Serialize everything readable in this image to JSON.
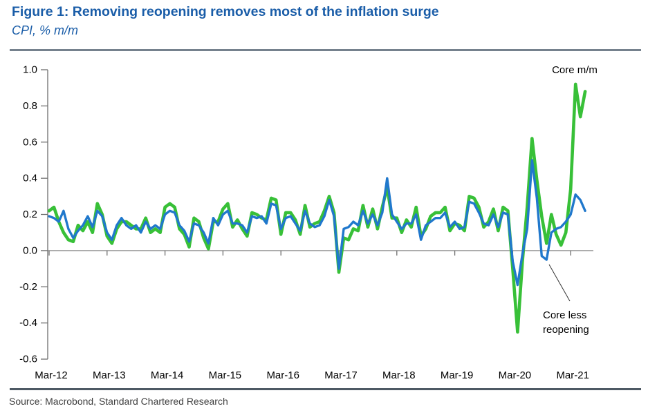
{
  "header": {
    "title": "Figure 1: Removing reopening removes most of the inflation surge",
    "subtitle": "CPI, % m/m"
  },
  "footer": {
    "source": "Source: Macrobond, Standard Chartered Research"
  },
  "chart_data": {
    "type": "line",
    "title": "Figure 1: Removing reopening removes most of the inflation surge",
    "ylabel": "CPI, % m/m",
    "x_start": "Mar-12",
    "x_end": "Jun-21",
    "x_frequency": "monthly",
    "n_points": 112,
    "x_tick_labels": [
      "Mar-12",
      "Mar-13",
      "Mar-14",
      "Mar-15",
      "Mar-16",
      "Mar-17",
      "Mar-18",
      "Mar-19",
      "Mar-20",
      "Mar-21"
    ],
    "ylim": [
      -0.6,
      1.0
    ],
    "y_tick_labels": [
      "1.0",
      "0.8",
      "0.6",
      "0.4",
      "0.2",
      "0.0",
      "-0.2",
      "-0.4",
      "-0.6"
    ],
    "grid": "zero-line-only",
    "legend_position": "inline-annotations",
    "annotation_colors": {
      "pointer_line": "#333333",
      "axis": "#6e6e6e",
      "zero_line": "#8a8a8a"
    },
    "series": [
      {
        "name": "Core m/m",
        "color": "#38c038",
        "line_width": 4.6,
        "values": [
          0.22,
          0.24,
          0.16,
          0.1,
          0.06,
          0.05,
          0.14,
          0.11,
          0.16,
          0.1,
          0.26,
          0.2,
          0.08,
          0.04,
          0.12,
          0.16,
          0.16,
          0.14,
          0.12,
          0.12,
          0.18,
          0.1,
          0.12,
          0.1,
          0.24,
          0.26,
          0.24,
          0.12,
          0.09,
          0.02,
          0.18,
          0.16,
          0.07,
          0.01,
          0.16,
          0.16,
          0.23,
          0.26,
          0.13,
          0.17,
          0.12,
          0.08,
          0.21,
          0.2,
          0.18,
          0.17,
          0.29,
          0.28,
          0.09,
          0.21,
          0.21,
          0.17,
          0.09,
          0.25,
          0.13,
          0.15,
          0.16,
          0.22,
          0.3,
          0.21,
          -0.12,
          0.07,
          0.06,
          0.12,
          0.11,
          0.25,
          0.13,
          0.23,
          0.12,
          0.24,
          0.35,
          0.18,
          0.18,
          0.1,
          0.17,
          0.13,
          0.24,
          0.08,
          0.12,
          0.19,
          0.21,
          0.21,
          0.24,
          0.11,
          0.15,
          0.14,
          0.11,
          0.3,
          0.29,
          0.24,
          0.13,
          0.16,
          0.23,
          0.11,
          0.24,
          0.22,
          -0.1,
          -0.45,
          -0.06,
          0.24,
          0.62,
          0.39,
          0.19,
          0.04,
          0.2,
          0.09,
          0.03,
          0.1,
          0.34,
          0.92,
          0.74,
          0.88
        ]
      },
      {
        "name": "Core less reopening",
        "color": "#2078cc",
        "line_width": 3.4,
        "values": [
          0.19,
          0.18,
          0.16,
          0.22,
          0.12,
          0.07,
          0.11,
          0.14,
          0.19,
          0.13,
          0.22,
          0.19,
          0.1,
          0.06,
          0.14,
          0.18,
          0.14,
          0.12,
          0.14,
          0.1,
          0.16,
          0.12,
          0.14,
          0.12,
          0.2,
          0.22,
          0.21,
          0.14,
          0.11,
          0.05,
          0.15,
          0.14,
          0.1,
          0.04,
          0.18,
          0.14,
          0.2,
          0.22,
          0.15,
          0.15,
          0.14,
          0.1,
          0.19,
          0.18,
          0.19,
          0.15,
          0.26,
          0.25,
          0.12,
          0.18,
          0.19,
          0.15,
          0.11,
          0.22,
          0.15,
          0.13,
          0.14,
          0.19,
          0.28,
          0.19,
          -0.1,
          0.12,
          0.13,
          0.16,
          0.14,
          0.22,
          0.15,
          0.2,
          0.14,
          0.21,
          0.4,
          0.2,
          0.16,
          0.12,
          0.15,
          0.15,
          0.2,
          0.06,
          0.14,
          0.16,
          0.18,
          0.18,
          0.21,
          0.13,
          0.16,
          0.12,
          0.13,
          0.27,
          0.26,
          0.21,
          0.15,
          0.14,
          0.2,
          0.13,
          0.21,
          0.2,
          -0.06,
          -0.19,
          -0.02,
          0.12,
          0.5,
          0.29,
          -0.03,
          -0.05,
          0.1,
          0.12,
          0.13,
          0.16,
          0.2,
          0.31,
          0.28,
          0.22
        ]
      }
    ]
  }
}
